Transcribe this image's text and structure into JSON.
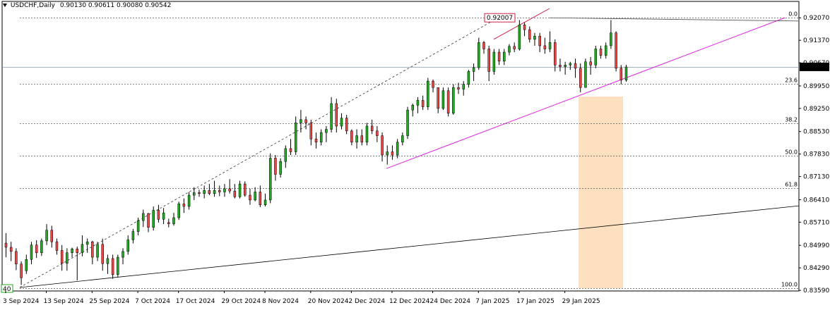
{
  "header": {
    "symbol": "USDCHF,Daily",
    "ohlc": "0.90130 0.90611 0.90080 0.90542"
  },
  "price_tag": "0.90542",
  "high_label": "0.92007",
  "corner_label": "40",
  "colors": {
    "bull": "#22aa22",
    "bear": "#ee4444",
    "trend_pink": "#dd22dd",
    "fib_zone": "#fde0c0",
    "high_line": "#cc2244"
  },
  "chart_data": {
    "type": "candlestick",
    "title": "USDCHF,Daily",
    "ylim": [
      0.8357,
      0.9236
    ],
    "y_ticks": [
      "0.92070",
      "0.91370",
      "0.90670",
      "0.89950",
      "0.89250",
      "0.88530",
      "0.87830",
      "0.87130",
      "0.86410",
      "0.85710",
      "0.84990",
      "0.84290",
      "0.83590"
    ],
    "x_ticks": [
      "3 Sep 2024",
      "13 Sep 2024",
      "25 Sep 2024",
      "7 Oct 2024",
      "17 Oct 2024",
      "29 Oct 2024",
      "8 Nov 2024",
      "20 Nov 2024",
      "2 Dec 2024",
      "12 Dec 2024",
      "24 Dec 2024",
      "7 Jan 2025",
      "17 Jan 2025",
      "29 Jan 2025"
    ],
    "fib_levels": [
      {
        "label": "0.0",
        "price": 0.9207
      },
      {
        "label": "23.6",
        "price": 0.9002
      },
      {
        "label": "38.2",
        "price": 0.8878
      },
      {
        "label": "50.0",
        "price": 0.8777
      },
      {
        "label": "61.8",
        "price": 0.8678
      },
      {
        "label": "100.0",
        "price": 0.8365
      }
    ],
    "candles": [
      [
        0.8506,
        0.8537,
        0.8462,
        0.8493
      ],
      [
        0.8493,
        0.851,
        0.845,
        0.848
      ],
      [
        0.848,
        0.849,
        0.8422,
        0.8441
      ],
      [
        0.8441,
        0.8449,
        0.8376,
        0.8398
      ],
      [
        0.842,
        0.847,
        0.841,
        0.8455
      ],
      [
        0.8455,
        0.851,
        0.844,
        0.85
      ],
      [
        0.85,
        0.8515,
        0.846,
        0.8476
      ],
      [
        0.8476,
        0.852,
        0.8466,
        0.8513
      ],
      [
        0.8513,
        0.8565,
        0.85,
        0.8546
      ],
      [
        0.8546,
        0.856,
        0.8492,
        0.851
      ],
      [
        0.851,
        0.852,
        0.847,
        0.8483
      ],
      [
        0.8483,
        0.85,
        0.842,
        0.8443
      ],
      [
        0.8443,
        0.849,
        0.842,
        0.8476
      ],
      [
        0.8476,
        0.8492,
        0.8462,
        0.8488
      ],
      [
        0.8488,
        0.8495,
        0.839,
        0.8476
      ],
      [
        0.8476,
        0.853,
        0.8465,
        0.8502
      ],
      [
        0.8502,
        0.852,
        0.8476,
        0.851
      ],
      [
        0.851,
        0.8513,
        0.844,
        0.8462
      ],
      [
        0.8462,
        0.851,
        0.845,
        0.8502
      ],
      [
        0.8502,
        0.852,
        0.842,
        0.8442
      ],
      [
        0.8442,
        0.847,
        0.841,
        0.8458
      ],
      [
        0.8458,
        0.847,
        0.8395,
        0.8408
      ],
      [
        0.8408,
        0.847,
        0.84,
        0.8462
      ],
      [
        0.8462,
        0.849,
        0.844,
        0.848
      ],
      [
        0.848,
        0.853,
        0.847,
        0.8516
      ],
      [
        0.8516,
        0.855,
        0.8505,
        0.8542
      ],
      [
        0.8542,
        0.8585,
        0.853,
        0.8576
      ],
      [
        0.8576,
        0.861,
        0.8556,
        0.8598
      ],
      [
        0.8598,
        0.86,
        0.854,
        0.8555
      ],
      [
        0.8555,
        0.862,
        0.8545,
        0.8608
      ],
      [
        0.8608,
        0.8625,
        0.857,
        0.858
      ],
      [
        0.858,
        0.8615,
        0.8565,
        0.86
      ],
      [
        0.857,
        0.8582,
        0.8555,
        0.8566
      ],
      [
        0.8566,
        0.86,
        0.856,
        0.8585
      ],
      [
        0.8585,
        0.8635,
        0.8578,
        0.8628
      ],
      [
        0.8628,
        0.8645,
        0.86,
        0.862
      ],
      [
        0.862,
        0.8665,
        0.861,
        0.8655
      ],
      [
        0.8655,
        0.868,
        0.864,
        0.8663
      ],
      [
        0.8663,
        0.8672,
        0.865,
        0.866
      ],
      [
        0.866,
        0.8685,
        0.8645,
        0.867
      ],
      [
        0.867,
        0.869,
        0.8655,
        0.866
      ],
      [
        0.866,
        0.87,
        0.865,
        0.867
      ],
      [
        0.867,
        0.8685,
        0.8652,
        0.8665
      ],
      [
        0.8665,
        0.869,
        0.865,
        0.8675
      ],
      [
        0.8675,
        0.8705,
        0.866,
        0.8668
      ],
      [
        0.8668,
        0.869,
        0.8645,
        0.865
      ],
      [
        0.865,
        0.87,
        0.8645,
        0.869
      ],
      [
        0.869,
        0.8698,
        0.865,
        0.8655
      ],
      [
        0.8655,
        0.8675,
        0.8625,
        0.864
      ],
      [
        0.864,
        0.868,
        0.8636,
        0.8665
      ],
      [
        0.8665,
        0.8685,
        0.8618,
        0.8625
      ],
      [
        0.8625,
        0.866,
        0.862,
        0.864
      ],
      [
        0.864,
        0.8785,
        0.863,
        0.877
      ],
      [
        0.877,
        0.878,
        0.87,
        0.872
      ],
      [
        0.872,
        0.877,
        0.871,
        0.876
      ],
      [
        0.876,
        0.881,
        0.874,
        0.88
      ],
      [
        0.88,
        0.883,
        0.878,
        0.879
      ],
      [
        0.879,
        0.89,
        0.878,
        0.888
      ],
      [
        0.888,
        0.892,
        0.885,
        0.889
      ],
      [
        0.889,
        0.89,
        0.886,
        0.888
      ],
      [
        0.888,
        0.889,
        0.881,
        0.883
      ],
      [
        0.883,
        0.885,
        0.88,
        0.882
      ],
      [
        0.882,
        0.886,
        0.881,
        0.885
      ],
      [
        0.885,
        0.887,
        0.882,
        0.886
      ],
      [
        0.886,
        0.896,
        0.885,
        0.894
      ],
      [
        0.894,
        0.8955,
        0.885,
        0.887
      ],
      [
        0.887,
        0.891,
        0.886,
        0.8895
      ],
      [
        0.8895,
        0.8905,
        0.8845,
        0.8855
      ],
      [
        0.8855,
        0.886,
        0.881,
        0.882
      ],
      [
        0.882,
        0.886,
        0.88,
        0.884
      ],
      [
        0.884,
        0.886,
        0.881,
        0.882
      ],
      [
        0.882,
        0.888,
        0.881,
        0.887
      ],
      [
        0.887,
        0.889,
        0.8845,
        0.8855
      ],
      [
        0.8855,
        0.887,
        0.882,
        0.884
      ],
      [
        0.884,
        0.885,
        0.876,
        0.878
      ],
      [
        0.878,
        0.881,
        0.875,
        0.879
      ],
      [
        0.879,
        0.881,
        0.8765,
        0.878
      ],
      [
        0.878,
        0.883,
        0.877,
        0.882
      ],
      [
        0.882,
        0.885,
        0.881,
        0.884
      ],
      [
        0.884,
        0.893,
        0.883,
        0.892
      ],
      [
        0.892,
        0.894,
        0.89,
        0.8935
      ],
      [
        0.8935,
        0.896,
        0.891,
        0.895
      ],
      [
        0.895,
        0.8965,
        0.892,
        0.893
      ],
      [
        0.893,
        0.902,
        0.892,
        0.901
      ],
      [
        0.901,
        0.9015,
        0.8975,
        0.899
      ],
      [
        0.899,
        0.899,
        0.891,
        0.8925
      ],
      [
        0.8925,
        0.899,
        0.892,
        0.898
      ],
      [
        0.898,
        0.899,
        0.89,
        0.891
      ],
      [
        0.891,
        0.9,
        0.8905,
        0.899
      ],
      [
        0.899,
        0.9005,
        0.897,
        0.8985
      ],
      [
        0.8985,
        0.901,
        0.8965,
        0.9
      ],
      [
        0.9,
        0.9045,
        0.899,
        0.904
      ],
      [
        0.904,
        0.9065,
        0.901,
        0.9052
      ],
      [
        0.9052,
        0.9145,
        0.9045,
        0.913
      ],
      [
        0.913,
        0.9135,
        0.9095,
        0.911
      ],
      [
        0.911,
        0.912,
        0.901,
        0.904
      ],
      [
        0.904,
        0.911,
        0.903,
        0.91
      ],
      [
        0.91,
        0.911,
        0.906,
        0.9072
      ],
      [
        0.9072,
        0.911,
        0.906,
        0.91
      ],
      [
        0.91,
        0.9125,
        0.909,
        0.9118
      ],
      [
        0.9118,
        0.913,
        0.91,
        0.911
      ],
      [
        0.911,
        0.92,
        0.9105,
        0.9185
      ],
      [
        0.9185,
        0.9192,
        0.915,
        0.917
      ],
      [
        0.917,
        0.918,
        0.913,
        0.914
      ],
      [
        0.914,
        0.916,
        0.912,
        0.915
      ],
      [
        0.915,
        0.916,
        0.91,
        0.912
      ],
      [
        0.912,
        0.9145,
        0.9095,
        0.911
      ],
      [
        0.911,
        0.9165,
        0.91,
        0.913
      ],
      [
        0.913,
        0.914,
        0.904,
        0.906
      ],
      [
        0.906,
        0.908,
        0.904,
        0.9055
      ],
      [
        0.9055,
        0.907,
        0.903,
        0.906
      ],
      [
        0.906,
        0.907,
        0.9045,
        0.9065
      ],
      [
        0.9065,
        0.908,
        0.902,
        0.905
      ],
      [
        0.905,
        0.9065,
        0.8975,
        0.899
      ],
      [
        0.899,
        0.908,
        0.899,
        0.907
      ],
      [
        0.907,
        0.9085,
        0.903,
        0.906
      ],
      [
        0.906,
        0.912,
        0.905,
        0.911
      ],
      [
        0.911,
        0.912,
        0.908,
        0.909
      ],
      [
        0.909,
        0.913,
        0.908,
        0.912
      ],
      [
        0.912,
        0.92,
        0.911,
        0.916
      ],
      [
        0.916,
        0.9165,
        0.904,
        0.905
      ],
      [
        0.905,
        0.906,
        0.9,
        0.9013
      ],
      [
        0.9013,
        0.9061,
        0.9008,
        0.9054
      ]
    ]
  }
}
